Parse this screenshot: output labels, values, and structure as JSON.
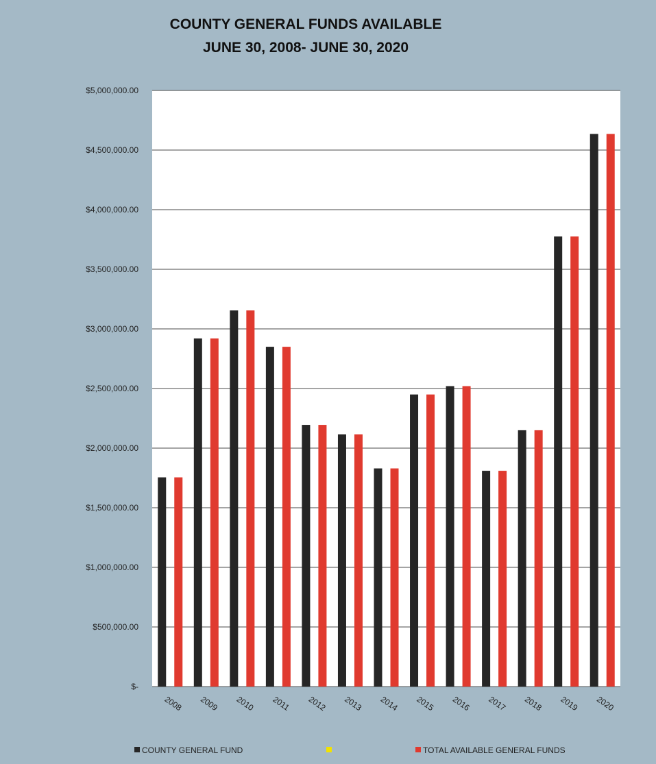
{
  "chart_data": {
    "type": "bar",
    "title": [
      "COUNTY GENERAL FUNDS AVAILABLE",
      "JUNE 30, 2008- JUNE 30, 2020"
    ],
    "categories": [
      "2008",
      "2009",
      "2010",
      "2011",
      "2012",
      "2013",
      "2014",
      "2015",
      "2016",
      "2017",
      "2018",
      "2019",
      "2020"
    ],
    "series": [
      {
        "name": "COUNTY GENERAL FUND",
        "color": "#262626",
        "values": [
          1755000,
          2920000,
          3155000,
          2850000,
          2195000,
          2115000,
          1830000,
          2450000,
          2520000,
          1810000,
          2150000,
          3775000,
          4635000
        ]
      },
      {
        "name": "",
        "color": "#f2e200",
        "values": [
          0,
          0,
          0,
          0,
          0,
          0,
          0,
          0,
          0,
          0,
          0,
          0,
          0
        ]
      },
      {
        "name": "TOTAL AVAILABLE GENERAL FUNDS",
        "color": "#e03a2f",
        "values": [
          1755000,
          2920000,
          3155000,
          2850000,
          2195000,
          2115000,
          1830000,
          2450000,
          2520000,
          1810000,
          2150000,
          3775000,
          4635000
        ]
      }
    ],
    "y_ticks": [
      {
        "value": 0,
        "label": "$-"
      },
      {
        "value": 500000,
        "label": "$500,000.00"
      },
      {
        "value": 1000000,
        "label": "$1,000,000.00"
      },
      {
        "value": 1500000,
        "label": "$1,500,000.00"
      },
      {
        "value": 2000000,
        "label": "$2,000,000.00"
      },
      {
        "value": 2500000,
        "label": "$2,500,000.00"
      },
      {
        "value": 3000000,
        "label": "$3,000,000.00"
      },
      {
        "value": 3500000,
        "label": "$3,500,000.00"
      },
      {
        "value": 4000000,
        "label": "$4,000,000.00"
      },
      {
        "value": 4500000,
        "label": "$4,500,000.00"
      },
      {
        "value": 5000000,
        "label": "$5,000,000.00"
      }
    ],
    "ylim": [
      0,
      5000000
    ],
    "grid": true,
    "legend_position": "bottom",
    "colors": {
      "background": "#a4b9c6",
      "plot": "#ffffff",
      "grid": "#4a4a4a"
    }
  }
}
